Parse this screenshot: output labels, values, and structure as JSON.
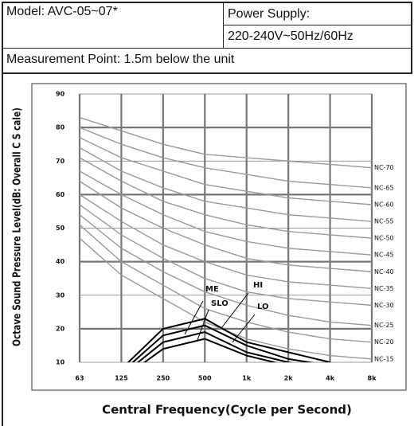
{
  "header": {
    "model": "Model: AVC-05~07*",
    "power_label": "Power Supply:",
    "power_value": "220-240V~50Hz/60Hz",
    "measurement_point": "Measurement Point: 1.5m below the unit"
  },
  "chart_data": {
    "type": "line",
    "x_label": "Central Frequency(Cycle per Second)",
    "y_label": "Octave Sound Pressure Level(dB: Overall C S cale)",
    "categories": [
      "63",
      "125",
      "250",
      "500",
      "1k",
      "2k",
      "4k",
      "8k"
    ],
    "ylim": [
      10,
      90
    ],
    "yticks": [
      10,
      20,
      30,
      40,
      50,
      60,
      70,
      80,
      90
    ],
    "grid": true,
    "series": [
      {
        "name": "NC-70",
        "color": "#999999",
        "values": [
          83,
          79,
          75,
          72,
          71,
          70,
          69,
          68
        ]
      },
      {
        "name": "NC-65",
        "color": "#999999",
        "values": [
          80,
          75,
          71,
          68,
          66,
          64,
          63,
          62
        ]
      },
      {
        "name": "NC-60",
        "color": "#999999",
        "values": [
          77,
          71,
          67,
          63,
          61,
          59,
          58,
          57
        ]
      },
      {
        "name": "NC-55",
        "color": "#999999",
        "values": [
          74,
          67,
          62,
          58,
          56,
          54,
          53,
          52
        ]
      },
      {
        "name": "NC-50",
        "color": "#999999",
        "values": [
          71,
          64,
          58,
          54,
          51,
          49,
          48,
          47
        ]
      },
      {
        "name": "NC-45",
        "color": "#999999",
        "values": [
          67,
          60,
          54,
          49,
          46,
          44,
          43,
          42
        ]
      },
      {
        "name": "NC-40",
        "color": "#999999",
        "values": [
          64,
          56,
          50,
          45,
          41,
          39,
          38,
          37
        ]
      },
      {
        "name": "NC-35",
        "color": "#999999",
        "values": [
          60,
          52,
          45,
          40,
          36,
          34,
          33,
          32
        ]
      },
      {
        "name": "NC-30",
        "color": "#999999",
        "values": [
          57,
          48,
          41,
          35,
          31,
          29,
          28,
          27
        ]
      },
      {
        "name": "NC-25",
        "color": "#999999",
        "values": [
          54,
          44,
          37,
          31,
          27,
          24,
          22,
          21
        ]
      },
      {
        "name": "NC-20",
        "color": "#999999",
        "values": [
          51,
          40,
          33,
          26,
          22,
          19,
          17,
          16
        ]
      },
      {
        "name": "NC-15",
        "color": "#999999",
        "values": [
          47,
          36,
          29,
          22,
          17,
          14,
          12,
          11
        ]
      },
      {
        "name": "HI",
        "color": "#000000",
        "values": [
          null,
          8,
          20,
          23,
          16,
          13,
          10,
          null
        ]
      },
      {
        "name": "ME",
        "color": "#000000",
        "values": [
          null,
          7,
          18,
          21,
          15,
          11,
          9,
          null
        ]
      },
      {
        "name": "SLO",
        "color": "#000000",
        "values": [
          null,
          6,
          16,
          19,
          13,
          10,
          8,
          null
        ]
      },
      {
        "name": "LO",
        "color": "#000000",
        "values": [
          null,
          5,
          14,
          17,
          12,
          9,
          7,
          null
        ]
      }
    ]
  }
}
